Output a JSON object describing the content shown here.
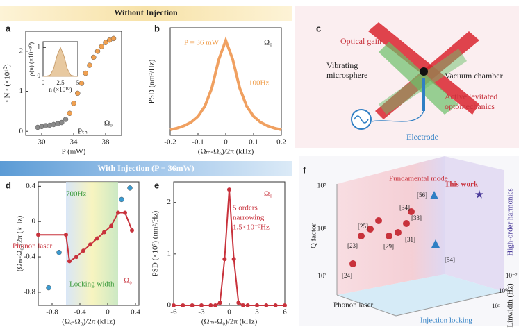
{
  "headers": [
    "Without Injection",
    "With Injection (P = 36mW)"
  ],
  "panel_labels": [
    "a",
    "b",
    "c",
    "d",
    "e",
    "f"
  ],
  "chart_data": [
    {
      "type": "scatter",
      "xlabel": "P (mW)",
      "ylabel": "<N> (×10¹⁰)",
      "xlim": [
        28,
        40
      ],
      "ylim": [
        -0.1,
        2.5
      ],
      "xticks": [
        30,
        34,
        38
      ],
      "yticks": [
        0,
        1,
        2
      ],
      "annotations": [
        "Ω₀",
        "Pₜₕ"
      ],
      "series": [
        {
          "color": "#8a8a8a",
          "x": [
            29.5,
            30,
            30.5,
            31,
            31.5,
            32,
            32.5,
            33
          ],
          "values": [
            0.1,
            0.12,
            0.14,
            0.15,
            0.17,
            0.19,
            0.22,
            0.3
          ]
        },
        {
          "color": "#f0a050",
          "x": [
            33.5,
            34,
            34.5,
            35,
            35.5,
            36,
            36.5,
            37,
            37.5,
            38,
            38.5,
            39
          ],
          "values": [
            0.45,
            0.7,
            0.95,
            1.2,
            1.45,
            1.65,
            1.85,
            2.0,
            2.12,
            2.22,
            2.28,
            2.32
          ]
        }
      ]
    },
    {
      "type": "area",
      "xlabel": "n (×10¹⁰)",
      "ylabel": "ρ(n) (×10⁻¹⁰)",
      "xlim": [
        0,
        5
      ],
      "ylim": [
        0,
        1.2
      ],
      "xticks": [
        0,
        2.5,
        5
      ],
      "yticks": [
        0,
        1
      ],
      "x": [
        0,
        0.5,
        1,
        1.5,
        2,
        2.5,
        3,
        3.5,
        4,
        4.5,
        5
      ],
      "series": [
        {
          "color": "#e8c9a0",
          "values": [
            0,
            0.01,
            0.04,
            0.25,
            0.71,
            1,
            0.71,
            0.25,
            0.04,
            0.01,
            0
          ]
        }
      ]
    },
    {
      "type": "line",
      "xlabel": "(Ωₘ-Ω₀)/2π (kHz)",
      "ylabel": "PSD (nm²/Hz)",
      "xlim": [
        -0.2,
        0.2
      ],
      "ylim": [
        0,
        1.7
      ],
      "xticks": [
        -0.2,
        -0.1,
        0,
        0.1,
        0.2
      ],
      "annotations": [
        "P = 36 mW",
        "Ω₀",
        "100Hz"
      ],
      "x": [
        -0.2,
        -0.175,
        -0.15,
        -0.125,
        -0.1,
        -0.075,
        -0.05,
        -0.025,
        0,
        0.025,
        0.05,
        0.075,
        0.1,
        0.125,
        0.15,
        0.175,
        0.2
      ],
      "series": [
        {
          "color": "#f0a060",
          "values": [
            0.088,
            0.113,
            0.15,
            0.207,
            0.3,
            0.462,
            0.75,
            1.2,
            1.5,
            1.2,
            0.75,
            0.462,
            0.3,
            0.207,
            0.15,
            0.113,
            0.088
          ]
        }
      ]
    },
    {
      "type": "line",
      "xlabel": "(Ωₑ-Ω₀)/2π (kHz)",
      "ylabel": "(Ωₘ-Ω₀)/2π (kHz)",
      "xlim": [
        -1,
        0.45
      ],
      "ylim": [
        -0.95,
        0.45
      ],
      "xticks": [
        -0.8,
        -0.4,
        0,
        0.4
      ],
      "yticks": [
        -0.8,
        -0.4,
        0,
        0.4
      ],
      "shade": [
        -0.6,
        0.15
      ],
      "annotations": [
        "700Hz",
        "Phonon laser",
        "Locking width",
        "Ω₀"
      ],
      "series": [
        {
          "color": "#c8323c",
          "markers": true,
          "x": [
            -1,
            -0.6,
            -0.55,
            -0.45,
            -0.35,
            -0.25,
            -0.15,
            -0.05,
            0.05,
            0.15,
            0.25,
            0.35
          ],
          "values": [
            -0.15,
            -0.15,
            -0.45,
            -0.4,
            -0.33,
            -0.26,
            -0.19,
            -0.12,
            -0.05,
            0.1,
            0.1,
            -0.1
          ]
        },
        {
          "color": "#3a9ad0",
          "dots": true,
          "x": [
            -0.85,
            -0.7,
            0.2,
            0.32
          ],
          "values": [
            -0.75,
            -0.35,
            0.25,
            0.38
          ]
        }
      ]
    },
    {
      "type": "line",
      "xlabel": "(Ωₘ-Ω₀)/2π (kHz)",
      "ylabel": "PSD (×10⁷) (nm²/Hz)",
      "xlim": [
        -6,
        6
      ],
      "ylim": [
        0,
        2.4
      ],
      "xticks": [
        -6,
        -3,
        0,
        3,
        6
      ],
      "yticks": [
        0,
        1,
        2
      ],
      "annotations": [
        "Ω₀",
        "5 orders",
        "narrowing",
        "1.5×10⁻³Hz"
      ],
      "x": [
        -6,
        -5,
        -4,
        -3,
        -2,
        -1.5,
        -1,
        -0.5,
        0,
        0.5,
        1,
        1.5,
        2,
        3,
        4,
        5,
        6
      ],
      "series": [
        {
          "color": "#c8323c",
          "markers": true,
          "values": [
            0,
            0,
            0,
            0,
            0,
            0,
            0.05,
            0.9,
            2.25,
            0.9,
            0.05,
            0,
            0,
            0,
            0,
            0,
            0
          ]
        }
      ]
    }
  ],
  "panel_c": {
    "labels": [
      "Optical gain",
      "Vibrating",
      "microsphere",
      "Vacuum chamber",
      "Active levitated",
      "optomechanics",
      "Electrode"
    ]
  },
  "panel_f": {
    "labels": [
      "Fundamental mode",
      "This work",
      "High-order harmonics",
      "Q factor",
      "Phonon laser",
      "Injection locking",
      "Linwidth (Hz)"
    ],
    "qticks": [
      "10⁷",
      "10⁵",
      "10³"
    ],
    "wticks": [
      "10⁻²",
      "10⁰",
      "10²"
    ],
    "refs": [
      "[56]",
      "[34]",
      "[33]",
      "[25]",
      "[23]",
      "[29]",
      "[31]",
      "[24]",
      "[54]"
    ]
  }
}
